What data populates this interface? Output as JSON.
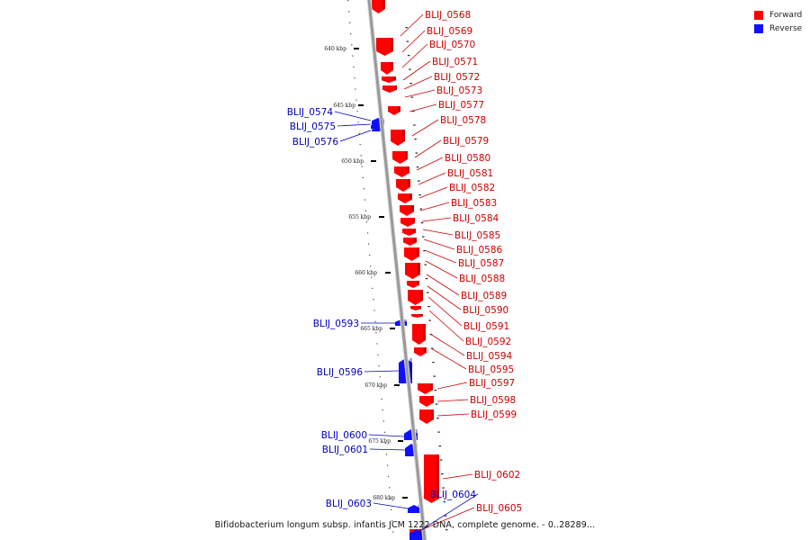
{
  "caption": "Bifidobacterium longum subsp. infantis JCM 1222 DNA, complete genome. - 0..28289...",
  "legend": {
    "forward": {
      "label": "Forward",
      "color": "#ff0000"
    },
    "reverse": {
      "label": "Reverse",
      "color": "#1010ff"
    }
  },
  "colors": {
    "forward_label": "#cc0000",
    "reverse_label": "#0000bb",
    "backbone": "#999999"
  },
  "kbp_labels": [
    "640 kbp",
    "645 kbp",
    "650 kbp",
    "655 kbp",
    "660 kbp",
    "665 kbp",
    "670 kbp",
    "675 kbp",
    "680 kbp"
  ],
  "genes": [
    {
      "name": "BLIJ_0568",
      "strand": "forward"
    },
    {
      "name": "BLIJ_0569",
      "strand": "forward"
    },
    {
      "name": "BLIJ_0570",
      "strand": "forward"
    },
    {
      "name": "BLIJ_0571",
      "strand": "forward"
    },
    {
      "name": "BLIJ_0572",
      "strand": "forward"
    },
    {
      "name": "BLIJ_0573",
      "strand": "forward"
    },
    {
      "name": "BLIJ_0577",
      "strand": "forward"
    },
    {
      "name": "BLIJ_0578",
      "strand": "forward"
    },
    {
      "name": "BLIJ_0579",
      "strand": "forward"
    },
    {
      "name": "BLIJ_0580",
      "strand": "forward"
    },
    {
      "name": "BLIJ_0581",
      "strand": "forward"
    },
    {
      "name": "BLIJ_0582",
      "strand": "forward"
    },
    {
      "name": "BLIJ_0583",
      "strand": "forward"
    },
    {
      "name": "BLIJ_0584",
      "strand": "forward"
    },
    {
      "name": "BLIJ_0585",
      "strand": "forward"
    },
    {
      "name": "BLIJ_0586",
      "strand": "forward"
    },
    {
      "name": "BLIJ_0587",
      "strand": "forward"
    },
    {
      "name": "BLIJ_0588",
      "strand": "forward"
    },
    {
      "name": "BLIJ_0589",
      "strand": "forward"
    },
    {
      "name": "BLIJ_0590",
      "strand": "forward"
    },
    {
      "name": "BLIJ_0591",
      "strand": "forward"
    },
    {
      "name": "BLIJ_0592",
      "strand": "forward"
    },
    {
      "name": "BLIJ_0594",
      "strand": "forward"
    },
    {
      "name": "BLIJ_0595",
      "strand": "forward"
    },
    {
      "name": "BLIJ_0597",
      "strand": "forward"
    },
    {
      "name": "BLIJ_0598",
      "strand": "forward"
    },
    {
      "name": "BLIJ_0599",
      "strand": "forward"
    },
    {
      "name": "BLIJ_0602",
      "strand": "forward"
    },
    {
      "name": "BLIJ_0605",
      "strand": "forward"
    },
    {
      "name": "BLIJ_0574",
      "strand": "reverse"
    },
    {
      "name": "BLIJ_0575",
      "strand": "reverse"
    },
    {
      "name": "BLIJ_0576",
      "strand": "reverse"
    },
    {
      "name": "BLIJ_0593",
      "strand": "reverse"
    },
    {
      "name": "BLIJ_0596",
      "strand": "reverse"
    },
    {
      "name": "BLIJ_0600",
      "strand": "reverse"
    },
    {
      "name": "BLIJ_0601",
      "strand": "reverse"
    },
    {
      "name": "BLIJ_0603",
      "strand": "reverse"
    },
    {
      "name": "BLIJ_0604",
      "strand": "reverse"
    }
  ]
}
